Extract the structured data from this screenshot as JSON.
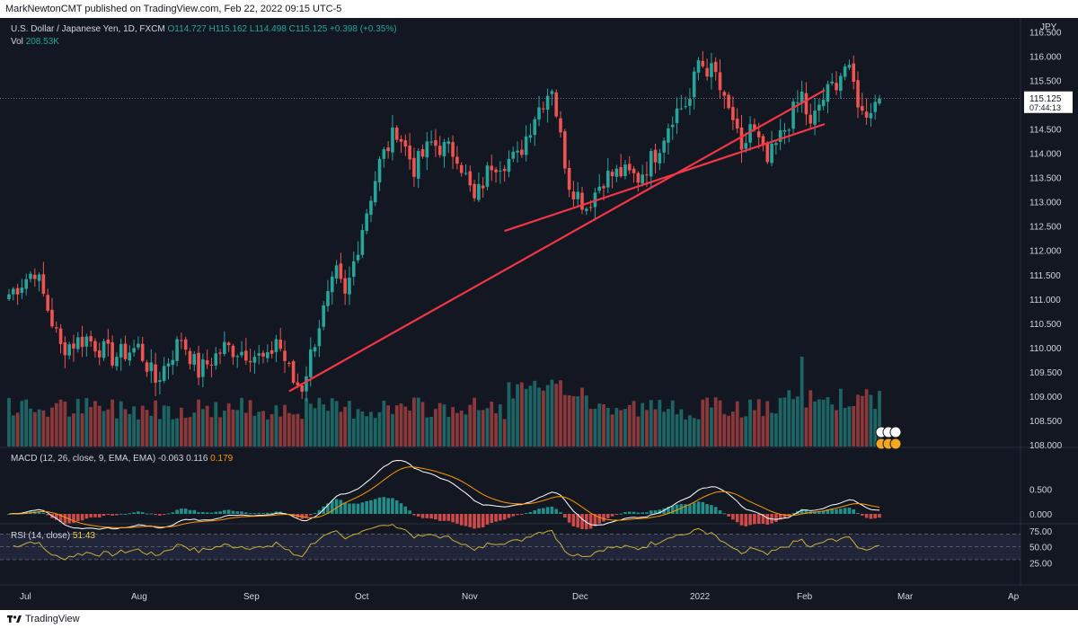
{
  "header": {
    "published_by": "MarkNewtonCMT published on TradingView.com, Feb 22, 2022 09:15 UTC-5"
  },
  "footer": {
    "brand": "TradingView"
  },
  "legend": {
    "symbol": "U.S. Dollar / Japanese Yen, 1D, FXCM",
    "ohlc": "O114.727 H115.162 L114.498 C115.125 +0.398 (+0.35%)",
    "vol_label": "Vol",
    "vol_value": "208.53K",
    "macd_label": "MACD (12, 26, close, 9, EMA, EMA)",
    "macd_hist": "-0.063",
    "macd_line": "0.116",
    "macd_signal": "0.179",
    "rsi_label": "RSI (14, close)",
    "rsi_value": "51.43"
  },
  "price_axis": {
    "currency": "JPY",
    "ticks": [
      "116.500",
      "116.000",
      "115.500",
      "115.000",
      "114.500",
      "114.000",
      "113.500",
      "113.000",
      "112.500",
      "112.000",
      "111.500",
      "111.000",
      "110.500",
      "110.000",
      "109.500",
      "109.000",
      "108.500",
      "108.000"
    ],
    "last_price": "115.125",
    "countdown": "07:44:13"
  },
  "macd_axis": {
    "ticks": [
      "0.500",
      "0.000"
    ]
  },
  "rsi_axis": {
    "ticks": [
      "75.00",
      "50.00",
      "25.00"
    ]
  },
  "time_axis": {
    "labels": [
      "Jul",
      "Aug",
      "Sep",
      "Oct",
      "Nov",
      "Dec",
      "2022",
      "Feb",
      "Mar",
      "Ap"
    ]
  },
  "colors": {
    "background": "#131722",
    "up": "#26a69a",
    "down": "#ef5350",
    "trendline": "#f23645",
    "macd_line": "#ffffff",
    "macd_signal": "#ff9800",
    "rsi_line": "#c9b037",
    "rsi_band": "#2a2e4a"
  },
  "chart_data": {
    "type": "candlestick",
    "symbol": "USDJPY",
    "interval": "1D",
    "ylim": [
      108.0,
      116.6
    ],
    "last_close": 115.125,
    "waypoints_close": [
      [
        0,
        111.1
      ],
      [
        6,
        111.6
      ],
      [
        12,
        110.0
      ],
      [
        18,
        110.2
      ],
      [
        24,
        109.8
      ],
      [
        30,
        110.0
      ],
      [
        34,
        109.3
      ],
      [
        40,
        110.2
      ],
      [
        44,
        109.5
      ],
      [
        50,
        110.0
      ],
      [
        56,
        109.9
      ],
      [
        60,
        109.7
      ],
      [
        62,
        110.2
      ],
      [
        66,
        109.3
      ],
      [
        68,
        109.2
      ],
      [
        72,
        110.5
      ],
      [
        76,
        111.5
      ],
      [
        78,
        111.0
      ],
      [
        82,
        112.5
      ],
      [
        86,
        113.8
      ],
      [
        90,
        114.5
      ],
      [
        94,
        113.7
      ],
      [
        98,
        114.2
      ],
      [
        104,
        114.0
      ],
      [
        108,
        113.0
      ],
      [
        112,
        113.8
      ],
      [
        118,
        113.9
      ],
      [
        122,
        114.8
      ],
      [
        126,
        115.4
      ],
      [
        128,
        114.3
      ],
      [
        130,
        113.4
      ],
      [
        134,
        112.9
      ],
      [
        138,
        113.5
      ],
      [
        142,
        113.6
      ],
      [
        146,
        113.5
      ],
      [
        150,
        114.0
      ],
      [
        154,
        114.8
      ],
      [
        158,
        115.1
      ],
      [
        160,
        115.9
      ],
      [
        164,
        115.6
      ],
      [
        166,
        115.0
      ],
      [
        168,
        114.7
      ],
      [
        170,
        113.9
      ],
      [
        172,
        114.6
      ],
      [
        176,
        113.8
      ],
      [
        180,
        114.5
      ],
      [
        184,
        115.2
      ],
      [
        186,
        114.5
      ],
      [
        188,
        115.0
      ],
      [
        192,
        115.5
      ],
      [
        194,
        115.8
      ],
      [
        196,
        115.4
      ],
      [
        198,
        114.8
      ],
      [
        202,
        115.125
      ]
    ],
    "volume_relative_peaks": "highest near early Feb 2022",
    "trendlines": [
      {
        "from_date": "2021-09-21",
        "from_price": 109.1,
        "to_date": "2022-03-14",
        "to_price": 115.3
      },
      {
        "from_date": "2021-11-30",
        "from_price": 112.4,
        "to_date": "2022-03-14",
        "to_price": 114.6
      }
    ],
    "macd": {
      "hist": -0.063,
      "macd": 0.116,
      "signal": 0.179
    },
    "rsi": {
      "value": 51.43,
      "levels": [
        70,
        50,
        30
      ]
    }
  }
}
